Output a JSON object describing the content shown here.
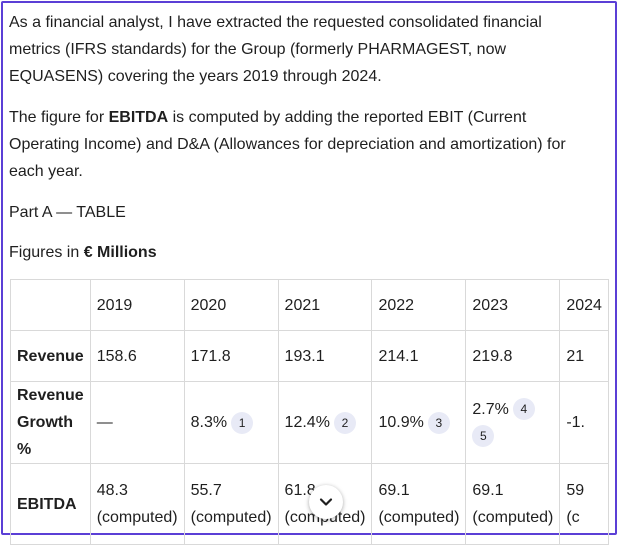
{
  "intro": {
    "para1": "As a financial analyst, I have extracted the requested consolidated financial metrics (IFRS standards) for the Group (formerly PHARMAGEST, now EQUASENS) covering the years 2019 through 2024.",
    "para2_prefix": "The figure for ",
    "para2_bold": "EBITDA",
    "para2_suffix": " is computed by adding the reported EBIT (Current Operating Income) and D&A (Allowances for depreciation and amortization) for each year.",
    "part_label": "Part A — TABLE",
    "figures_prefix": "Figures in ",
    "figures_bold": "€ Millions"
  },
  "table": {
    "header": [
      "",
      "2019",
      "2020",
      "2021",
      "2022",
      "2023",
      "2024"
    ],
    "rows": [
      {
        "label": "Revenue",
        "cells": [
          {
            "value": "158.6",
            "cites": []
          },
          {
            "value": "171.8",
            "cites": []
          },
          {
            "value": "193.1",
            "cites": []
          },
          {
            "value": "214.1",
            "cites": []
          },
          {
            "value": "219.8",
            "cites": []
          },
          {
            "value": "21",
            "cites": []
          }
        ]
      },
      {
        "label": "Revenue Growth %",
        "cells": [
          {
            "value": "—",
            "cites": []
          },
          {
            "value": "8.3%",
            "cites": [
              "1"
            ]
          },
          {
            "value": "12.4%",
            "cites": [
              "2"
            ]
          },
          {
            "value": "10.9%",
            "cites": [
              "3"
            ]
          },
          {
            "value": "2.7%",
            "cites": [
              "4",
              "5"
            ]
          },
          {
            "value": "-1.",
            "cites": []
          }
        ]
      },
      {
        "label": "EBITDA",
        "cells": [
          {
            "value": "48.3",
            "sub": "(computed)"
          },
          {
            "value": "55.7",
            "sub": "(computed)"
          },
          {
            "value": "61.8",
            "sub": "(computed)"
          },
          {
            "value": "69.1",
            "sub": "(computed)"
          },
          {
            "value": "69.1",
            "sub": "(computed)"
          },
          {
            "value": "59",
            "sub": "(c"
          }
        ]
      }
    ]
  },
  "scroll_button": {
    "icon": "chevron-down-icon"
  },
  "colors": {
    "frame_border": "#5b3fd6",
    "cite_bg": "#e8eaf6",
    "grid": "#d9d9d9"
  }
}
